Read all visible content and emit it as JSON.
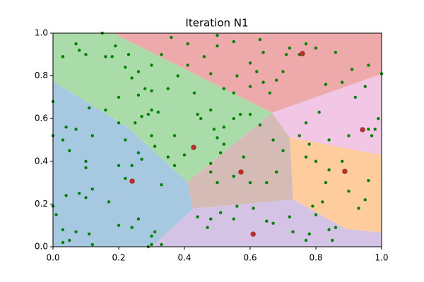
{
  "chart_data": {
    "type": "scatter",
    "title": "Iteration N1",
    "xlim": [
      0,
      1
    ],
    "ylim": [
      0,
      1
    ],
    "xticks": [
      {
        "value": 0,
        "label": "0.0"
      },
      {
        "value": 0.2,
        "label": "0.2"
      },
      {
        "value": 0.4,
        "label": "0.4"
      },
      {
        "value": 0.6,
        "label": "0.6"
      },
      {
        "value": 0.8,
        "label": "0.8"
      },
      {
        "value": 1,
        "label": "1.0"
      }
    ],
    "yticks": [
      {
        "value": 0,
        "label": "0.0"
      },
      {
        "value": 0.2,
        "label": "0.2"
      },
      {
        "value": 0.4,
        "label": "0.4"
      },
      {
        "value": 0.6,
        "label": "0.6"
      },
      {
        "value": 0.8,
        "label": "0.8"
      },
      {
        "value": 1,
        "label": "1.0"
      }
    ],
    "series": [
      {
        "color": "#008000",
        "x": [
          0.0,
          0.0,
          0.03,
          0.05,
          0.04,
          0.07,
          0.1,
          0.1,
          0.12,
          0.04,
          0.08,
          0.1,
          0.0,
          0.01,
          0.03,
          0.03,
          0.05,
          0.07,
          0.11,
          0.12,
          0.17,
          0.2,
          0.2,
          0.24,
          0.26,
          0.27,
          0.31,
          0.22,
          0.29,
          0.3,
          0.3,
          0.33,
          0.31,
          0.24,
          0.26,
          0.33,
          0.37,
          0.35,
          0.4,
          0.37,
          0.3,
          0.22,
          0.2,
          0.25,
          0.27,
          0.29,
          0.3,
          0.32,
          0.16,
          0.11,
          0.12,
          0.2,
          0.26,
          0.28,
          0.3,
          0.35,
          0.24,
          0.26,
          0.22,
          0.23,
          0.19,
          0.16,
          0.18,
          0.15,
          0.07,
          0.1,
          0.08,
          0.03,
          0.3,
          0.33,
          0.41,
          0.38,
          0.43,
          0.45,
          0.48,
          0.44,
          0.5,
          0.49,
          0.52,
          0.52,
          0.55,
          0.57,
          0.6,
          0.63,
          0.48,
          0.51,
          0.48,
          0.5,
          0.55,
          0.6,
          0.65,
          0.68,
          0.67,
          0.7,
          0.58,
          0.44,
          0.47,
          0.48,
          0.51,
          0.55,
          0.56,
          0.61,
          0.65,
          0.67,
          0.72,
          0.73,
          0.77,
          0.78,
          0.8,
          0.84,
          0.85,
          0.86,
          0.79,
          0.82,
          0.83,
          0.84,
          0.88,
          0.9,
          0.93,
          0.95,
          0.96,
          0.77,
          0.8,
          0.78,
          0.75,
          0.84,
          0.9,
          0.96,
          0.98,
          0.97,
          0.81,
          0.77,
          0.92,
          0.99,
          1.0,
          0.96,
          0.95,
          0.83,
          0.88,
          0.91,
          0.86,
          0.8,
          0.77,
          0.72,
          0.71,
          0.64,
          0.62,
          0.6,
          0.56,
          0.5,
          0.46,
          0.48,
          0.52,
          0.55,
          0.6,
          0.64,
          0.66,
          0.68,
          0.7,
          0.75,
          0.63,
          0.55,
          0.5,
          0.41,
          0.36
        ],
        "values": [
          0.68,
          0.52,
          0.5,
          0.45,
          0.56,
          0.55,
          0.37,
          0.4,
          0.27,
          0.24,
          0.25,
          0.23,
          0.19,
          0.15,
          0.08,
          0.02,
          0.03,
          0.07,
          0.06,
          0.01,
          0.21,
          0.1,
          0.38,
          0.38,
          0.44,
          0.41,
          0.47,
          0.32,
          0.0,
          0.01,
          0.05,
          0.01,
          0.07,
          0.09,
          0.13,
          0.29,
          0.38,
          0.42,
          0.43,
          0.52,
          0.52,
          0.5,
          0.58,
          0.58,
          0.61,
          0.62,
          0.64,
          0.63,
          0.64,
          0.65,
          0.52,
          0.7,
          0.71,
          0.74,
          0.73,
          0.74,
          0.79,
          0.82,
          0.84,
          0.9,
          0.94,
          0.89,
          0.89,
          1.0,
          0.95,
          0.9,
          0.92,
          0.89,
          0.85,
          0.9,
          0.85,
          0.8,
          0.72,
          0.6,
          0.64,
          0.62,
          0.51,
          0.55,
          0.56,
          0.48,
          0.6,
          0.62,
          0.62,
          0.57,
          0.39,
          0.44,
          0.35,
          0.3,
          0.33,
          0.3,
          0.3,
          0.35,
          0.5,
          0.45,
          0.42,
          0.14,
          0.09,
          0.13,
          0.16,
          0.13,
          0.19,
          0.18,
          0.12,
          0.11,
          0.14,
          0.07,
          0.03,
          0.06,
          0.15,
          0.08,
          0.03,
          0.09,
          0.19,
          0.21,
          0.3,
          0.36,
          0.4,
          0.26,
          0.18,
          0.22,
          0.31,
          0.42,
          0.4,
          0.48,
          0.52,
          0.5,
          0.52,
          0.55,
          0.55,
          0.52,
          0.63,
          0.58,
          0.7,
          0.6,
          0.81,
          0.85,
          0.75,
          0.76,
          0.77,
          0.83,
          0.91,
          0.93,
          0.95,
          0.93,
          0.9,
          0.91,
          0.82,
          0.86,
          0.8,
          0.94,
          0.89,
          0.81,
          0.74,
          0.72,
          0.75,
          0.77,
          0.72,
          0.78,
          0.82,
          0.9,
          0.97,
          0.96,
          0.99,
          0.95,
          0.98
        ]
      },
      {
        "color": "#c0302a",
        "x": [
          0.241,
          0.428,
          0.572,
          0.609,
          0.759,
          0.942,
          0.888
        ],
        "values": [
          0.307,
          0.465,
          0.35,
          0.059,
          0.904,
          0.548,
          0.353
        ]
      }
    ]
  }
}
